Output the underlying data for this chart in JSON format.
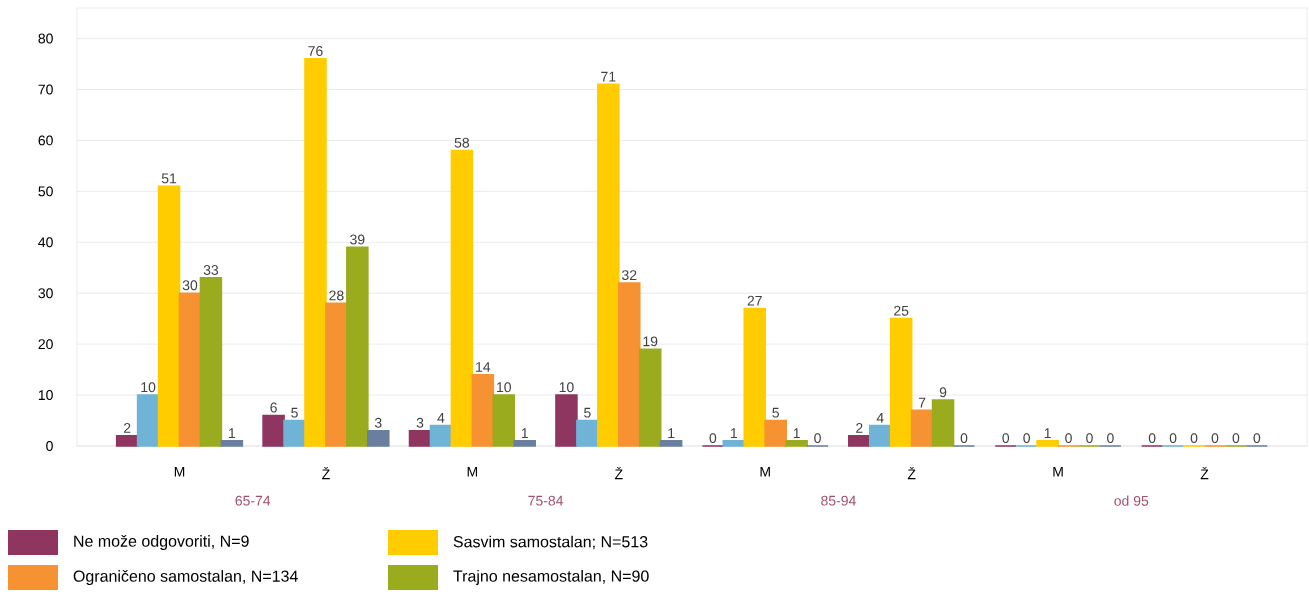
{
  "chart_data": {
    "type": "bar",
    "categories": [
      "M",
      "Ž",
      "M",
      "Ž",
      "M",
      "Ž",
      "M",
      "Ž"
    ],
    "annotations": [
      "65-74",
      "75-84",
      "85-94",
      "od 95"
    ],
    "series": [
      {
        "name": "Ne može odgovoriti, N=9",
        "color": "#8e3560",
        "values": [
          2,
          6,
          3,
          10,
          0,
          2,
          0,
          0
        ]
      },
      {
        "color": "#6fb3d6",
        "values": [
          10,
          5,
          4,
          5,
          1,
          4,
          0,
          0
        ]
      },
      {
        "name": "Sasvim samostalan; N=513",
        "color": "#ffcc00",
        "values": [
          51,
          76,
          58,
          71,
          27,
          25,
          1,
          0
        ]
      },
      {
        "name": "Ograničeno samostalan, N=134",
        "color": "#f79232",
        "values": [
          30,
          28,
          14,
          32,
          5,
          7,
          0,
          0
        ]
      },
      {
        "name": "Trajno nesamostalan, N=90",
        "color": "#9aab1e",
        "values": [
          33,
          39,
          10,
          19,
          1,
          9,
          0,
          0
        ]
      },
      {
        "color": "#6a7fa0",
        "values": [
          1,
          3,
          1,
          1,
          0,
          0,
          0,
          0
        ]
      }
    ],
    "ylim": [
      0,
      86
    ],
    "yticks": [
      0,
      10,
      20,
      30,
      40,
      50,
      60,
      70,
      80
    ],
    "grid": "y",
    "data_labels": true,
    "legend": "bottom"
  }
}
